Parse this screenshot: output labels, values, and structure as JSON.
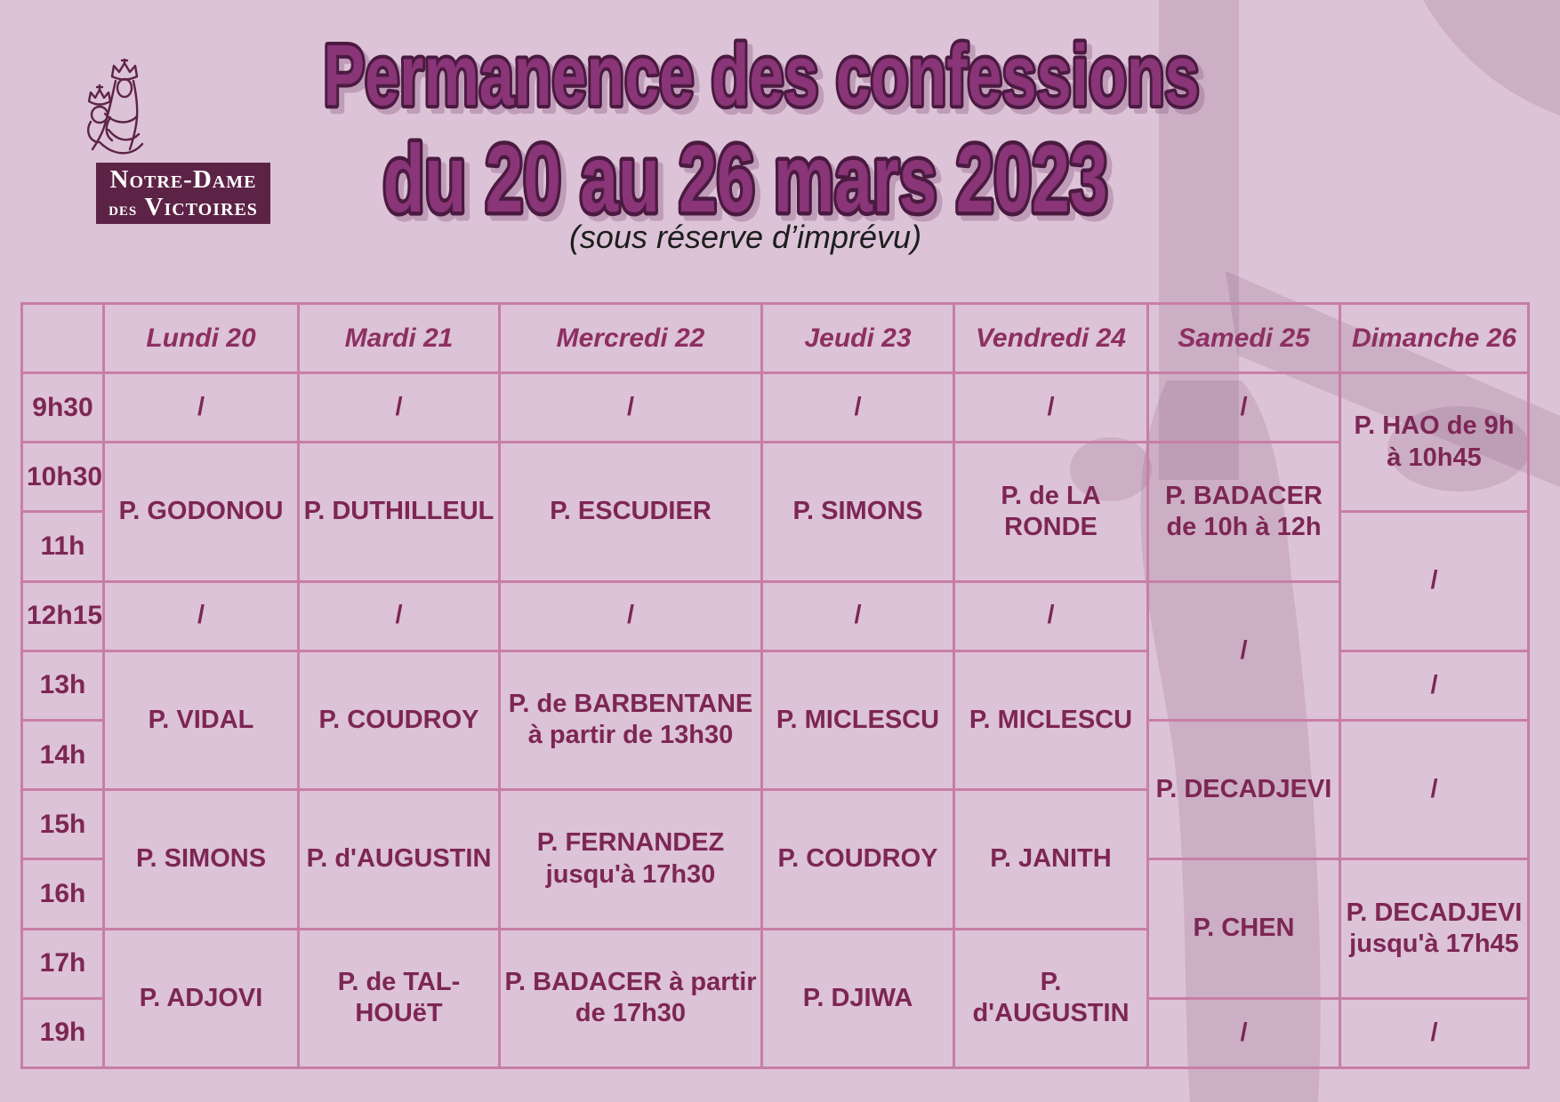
{
  "logo": {
    "line1": "Notre-Dame",
    "line2_prefix": "des",
    "line2_main": "Victoires",
    "box_color": "#5d2346",
    "madonna_icon": "crowned-virgin-and-child-line-art"
  },
  "title": {
    "line1": "Permanence des confessions",
    "line2": "du 20 au 26 mars 2023",
    "subtitle": "(sous réserve d’imprévu)",
    "fill_color": "#8a3577",
    "outline_color": "#4a1a40"
  },
  "watermark": {
    "description": "faded crucifix silhouette",
    "color": "#5d2346"
  },
  "table": {
    "border_color": "#c87ea6",
    "text_color": "#7d2656",
    "header_text_color": "#8d2f62",
    "corner": "",
    "times": [
      "9h30",
      "10h30",
      "11h",
      "12h15",
      "13h",
      "14h",
      "15h",
      "16h",
      "17h",
      "19h"
    ],
    "columns": [
      {
        "day": "Lundi 20",
        "cells": [
          {
            "text": "/",
            "span": 1
          },
          {
            "text": "P. GODONOU",
            "span": 2
          },
          {
            "text": "/",
            "span": 1
          },
          {
            "text": "P. VIDAL",
            "span": 2
          },
          {
            "text": "P. SIMONS",
            "span": 2
          },
          {
            "text": "P. ADJOVI",
            "span": 2
          }
        ]
      },
      {
        "day": "Mardi 21",
        "cells": [
          {
            "text": "/",
            "span": 1
          },
          {
            "text": "P. DUTHILLEUL",
            "span": 2
          },
          {
            "text": "/",
            "span": 1
          },
          {
            "text": "P. COUDROY",
            "span": 2
          },
          {
            "text": "P. d'AUGUSTIN",
            "span": 2
          },
          {
            "text": "P. de TAL-HOUëT",
            "span": 2
          }
        ]
      },
      {
        "day": "Mercredi 22",
        "cells": [
          {
            "text": "/",
            "span": 1
          },
          {
            "text": "P. ESCUDIER",
            "span": 2
          },
          {
            "text": "/",
            "span": 1
          },
          {
            "text": "P. de BARBENTANE à partir de 13h30",
            "span": 2
          },
          {
            "text": "P. FERNANDEZ jusqu'à 17h30",
            "span": 2
          },
          {
            "text": "P. BADACER à partir de 17h30",
            "span": 2
          }
        ]
      },
      {
        "day": "Jeudi 23",
        "cells": [
          {
            "text": "/",
            "span": 1
          },
          {
            "text": "P. SIMONS",
            "span": 2
          },
          {
            "text": "/",
            "span": 1
          },
          {
            "text": "P. MICLESCU",
            "span": 2
          },
          {
            "text": "P. COUDROY",
            "span": 2
          },
          {
            "text": "P. DJIWA",
            "span": 2
          }
        ]
      },
      {
        "day": "Vendredi 24",
        "cells": [
          {
            "text": "/",
            "span": 1
          },
          {
            "text": "P. de LA RONDE",
            "span": 2
          },
          {
            "text": "/",
            "span": 1
          },
          {
            "text": "P. MICLESCU",
            "span": 2
          },
          {
            "text": "P. JANITH",
            "span": 2
          },
          {
            "text": "P. d'AUGUSTIN",
            "span": 2
          }
        ]
      },
      {
        "day": "Samedi 25",
        "cells": [
          {
            "text": "/",
            "span": 1
          },
          {
            "text": "P. BADACER de 10h à 12h",
            "span": 2
          },
          {
            "text": "/",
            "span": 2
          },
          {
            "text": "P. DECADJEVI",
            "span": 2
          },
          {
            "text": "P. CHEN",
            "span": 2
          },
          {
            "text": "/",
            "span": 1
          }
        ]
      },
      {
        "day": "Dimanche 26",
        "cells": [
          {
            "text": "P. HAO de 9h à 10h45",
            "span": 2
          },
          {
            "text": "/",
            "span": 2
          },
          {
            "text": "/",
            "span": 1
          },
          {
            "text": "/",
            "span": 2
          },
          {
            "text": "P. DECADJEVI jusqu'à 17h45",
            "span": 2
          },
          {
            "text": "/",
            "span": 1
          }
        ]
      }
    ]
  }
}
